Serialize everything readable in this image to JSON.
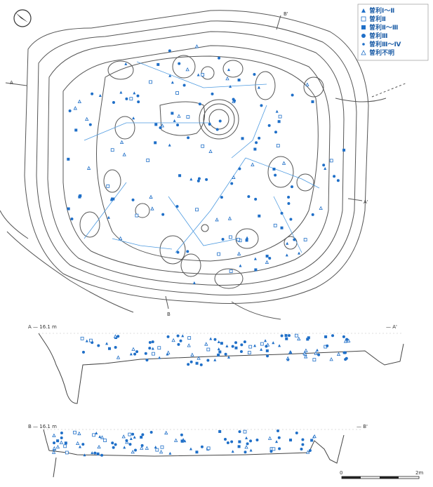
{
  "legend": {
    "items": [
      {
        "label": "曽利Ⅰ～Ⅱ",
        "symbol": "triangle-filled"
      },
      {
        "label": "曽利Ⅱ",
        "symbol": "square-open"
      },
      {
        "label": "曽利Ⅱ～Ⅲ",
        "symbol": "square-filled"
      },
      {
        "label": "曽利Ⅲ",
        "symbol": "circle-filled"
      },
      {
        "label": "曽利Ⅲ～Ⅳ",
        "symbol": "circle-small"
      },
      {
        "label": "曽利不明",
        "symbol": "triangle-open"
      }
    ]
  },
  "plan": {
    "label_a": "A",
    "label_a_prime": "A'",
    "label_b": "B",
    "label_b_prime": "B'"
  },
  "section_a": {
    "left_label": "A — 16.1 m",
    "right_label": "— A'"
  },
  "section_b": {
    "left_label": "B — 16.1 m",
    "right_label": "— B'"
  },
  "scale_bar": {
    "start_label": "0",
    "end_label": "2m"
  },
  "colors": {
    "line": "#555555",
    "accent": "#1f6fc8",
    "link": "#4d9ae0"
  }
}
